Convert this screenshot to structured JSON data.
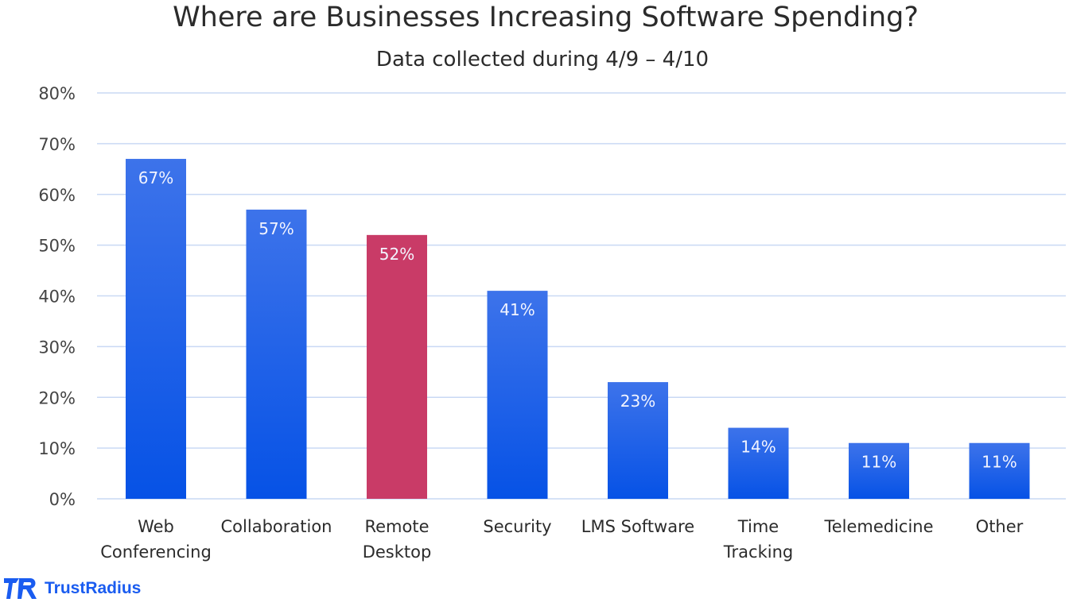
{
  "chart_data": {
    "type": "bar",
    "title": "Where are Businesses Increasing Software Spending?",
    "subtitle": "Data collected during 4/9 – 4/10",
    "categories": [
      [
        "Web",
        "Conferencing"
      ],
      [
        "Collaboration"
      ],
      [
        "Remote",
        "Desktop"
      ],
      [
        "Security"
      ],
      [
        "LMS Software"
      ],
      [
        "Time",
        "Tracking"
      ],
      [
        "Telemedicine"
      ],
      [
        "Other"
      ]
    ],
    "values": [
      67,
      57,
      52,
      41,
      23,
      14,
      11,
      11
    ],
    "data_labels": [
      "67%",
      "57%",
      "52%",
      "41%",
      "23%",
      "14%",
      "11%",
      "11%"
    ],
    "highlight_index": 2,
    "ylim": [
      0,
      80
    ],
    "yticks": [
      "0%",
      "10%",
      "20%",
      "30%",
      "40%",
      "50%",
      "60%",
      "70%",
      "80%"
    ],
    "grid": true,
    "colors": {
      "bar_top": "#3d73ea",
      "bar_bottom": "#0652e6",
      "highlight": "#c93b67",
      "grid": "#c9d9f4",
      "text": "#2b2b2b"
    }
  },
  "brand": {
    "name": "TrustRadius",
    "color": "#1a5cf0"
  }
}
